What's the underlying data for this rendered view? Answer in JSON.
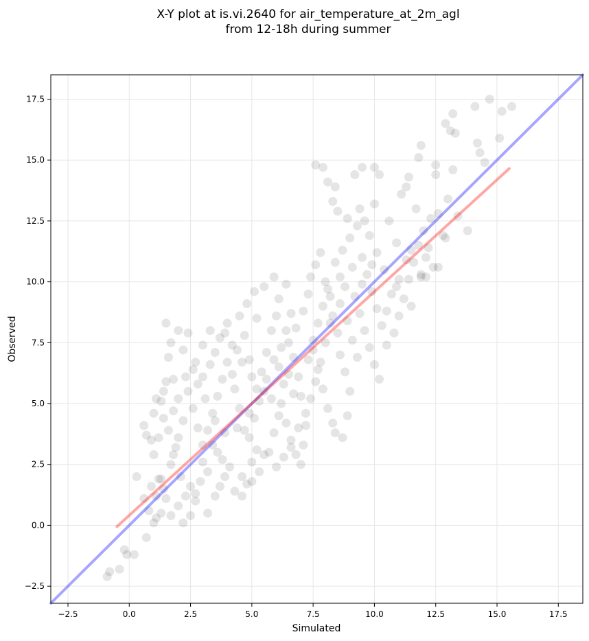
{
  "chart_data": {
    "type": "scatter",
    "title": [
      "X-Y plot at is.vi.2640 for air_temperature_at_2m_agl",
      "from 12-18h during summer"
    ],
    "xlabel": "Simulated",
    "ylabel": "Observed",
    "xlim": [
      -3.2,
      18.5
    ],
    "ylim": [
      -3.2,
      18.5
    ],
    "x_ticks": [
      -2.5,
      0.0,
      2.5,
      5.0,
      7.5,
      10.0,
      12.5,
      15.0,
      17.5
    ],
    "x_tick_labels": [
      "−2.5",
      "0.0",
      "2.5",
      "5.0",
      "7.5",
      "10.0",
      "12.5",
      "15.0",
      "17.5"
    ],
    "y_ticks": [
      -2.5,
      0.0,
      2.5,
      5.0,
      7.5,
      10.0,
      12.5,
      15.0,
      17.5
    ],
    "y_tick_labels": [
      "−2.5",
      "0.0",
      "2.5",
      "5.0",
      "7.5",
      "10.0",
      "12.5",
      "15.0",
      "17.5"
    ],
    "grid": true,
    "point_color": "#333333",
    "points": [
      [
        -0.9,
        -2.1
      ],
      [
        -0.8,
        -1.9
      ],
      [
        -0.4,
        -1.8
      ],
      [
        -0.1,
        -1.2
      ],
      [
        0.2,
        -1.2
      ],
      [
        -0.2,
        -1.0
      ],
      [
        0.7,
        -0.5
      ],
      [
        0.3,
        2.0
      ],
      [
        0.6,
        1.1
      ],
      [
        0.8,
        0.6
      ],
      [
        1.0,
        0.1
      ],
      [
        1.1,
        0.3
      ],
      [
        1.3,
        0.5
      ],
      [
        0.6,
        4.1
      ],
      [
        0.7,
        3.7
      ],
      [
        0.9,
        3.5
      ],
      [
        1.0,
        4.6
      ],
      [
        1.1,
        5.2
      ],
      [
        1.4,
        5.5
      ],
      [
        1.5,
        8.3
      ],
      [
        1.7,
        7.5
      ],
      [
        1.8,
        6.0
      ],
      [
        2.0,
        8.0
      ],
      [
        1.6,
        6.9
      ],
      [
        2.2,
        7.2
      ],
      [
        2.4,
        7.9
      ],
      [
        1.2,
        1.9
      ],
      [
        1.4,
        1.5
      ],
      [
        1.7,
        2.5
      ],
      [
        1.9,
        3.2
      ],
      [
        2.1,
        2.0
      ],
      [
        2.3,
        1.2
      ],
      [
        2.5,
        1.6
      ],
      [
        2.7,
        1.0
      ],
      [
        2.9,
        1.8
      ],
      [
        3.0,
        2.6
      ],
      [
        3.2,
        2.2
      ],
      [
        3.2,
        0.5
      ],
      [
        3.4,
        3.3
      ],
      [
        3.6,
        3.0
      ],
      [
        3.8,
        2.7
      ],
      [
        3.9,
        3.8
      ],
      [
        3.5,
        4.3
      ],
      [
        3.1,
        5.2
      ],
      [
        2.8,
        5.8
      ],
      [
        2.6,
        6.4
      ],
      [
        3.0,
        7.4
      ],
      [
        3.3,
        8.0
      ],
      [
        3.7,
        7.7
      ],
      [
        4.0,
        8.3
      ],
      [
        4.2,
        6.2
      ],
      [
        4.3,
        5.6
      ],
      [
        4.5,
        4.8
      ],
      [
        4.4,
        4.0
      ],
      [
        4.1,
        2.4
      ],
      [
        4.6,
        2.0
      ],
      [
        4.8,
        1.7
      ],
      [
        5.0,
        2.6
      ],
      [
        5.2,
        3.1
      ],
      [
        4.9,
        3.6
      ],
      [
        5.1,
        4.4
      ],
      [
        5.3,
        5.1
      ],
      [
        5.5,
        5.5
      ],
      [
        5.4,
        6.3
      ],
      [
        5.6,
        7.1
      ],
      [
        5.8,
        8.0
      ],
      [
        6.0,
        8.6
      ],
      [
        5.2,
        8.5
      ],
      [
        4.7,
        7.8
      ],
      [
        4.9,
        6.8
      ],
      [
        6.1,
        6.5
      ],
      [
        6.3,
        5.8
      ],
      [
        6.2,
        5.0
      ],
      [
        6.4,
        4.2
      ],
      [
        6.6,
        3.5
      ],
      [
        6.8,
        2.9
      ],
      [
        7.0,
        2.5
      ],
      [
        7.1,
        3.3
      ],
      [
        7.2,
        4.1
      ],
      [
        7.0,
        5.3
      ],
      [
        6.9,
        6.1
      ],
      [
        6.7,
        6.9
      ],
      [
        6.5,
        7.5
      ],
      [
        6.8,
        8.1
      ],
      [
        7.1,
        8.8
      ],
      [
        7.3,
        9.5
      ],
      [
        7.4,
        10.2
      ],
      [
        7.6,
        10.7
      ],
      [
        7.8,
        11.2
      ],
      [
        7.5,
        7.2
      ],
      [
        7.7,
        6.4
      ],
      [
        7.9,
        5.6
      ],
      [
        8.1,
        4.8
      ],
      [
        8.3,
        4.2
      ],
      [
        8.4,
        3.8
      ],
      [
        8.7,
        3.6
      ],
      [
        8.9,
        4.5
      ],
      [
        9.0,
        5.5
      ],
      [
        8.8,
        6.3
      ],
      [
        8.6,
        7.0
      ],
      [
        8.5,
        7.9
      ],
      [
        8.3,
        8.6
      ],
      [
        8.2,
        9.4
      ],
      [
        8.0,
        10.0
      ],
      [
        8.4,
        10.8
      ],
      [
        8.7,
        11.3
      ],
      [
        9.0,
        11.8
      ],
      [
        9.3,
        12.3
      ],
      [
        9.5,
        11.0
      ],
      [
        9.7,
        10.3
      ],
      [
        9.9,
        9.6
      ],
      [
        10.1,
        8.9
      ],
      [
        10.3,
        8.2
      ],
      [
        10.5,
        7.4
      ],
      [
        10.8,
        7.9
      ],
      [
        11.0,
        8.6
      ],
      [
        11.2,
        9.3
      ],
      [
        11.4,
        10.1
      ],
      [
        11.6,
        10.8
      ],
      [
        11.8,
        11.5
      ],
      [
        12.0,
        12.1
      ],
      [
        12.2,
        11.4
      ],
      [
        12.4,
        10.6
      ],
      [
        11.9,
        10.2
      ],
      [
        11.5,
        9.0
      ],
      [
        10.9,
        9.8
      ],
      [
        10.4,
        10.5
      ],
      [
        10.1,
        11.2
      ],
      [
        9.8,
        11.9
      ],
      [
        9.6,
        12.5
      ],
      [
        10.0,
        13.2
      ],
      [
        9.4,
        13.0
      ],
      [
        8.9,
        12.6
      ],
      [
        8.5,
        12.9
      ],
      [
        8.3,
        13.3
      ],
      [
        8.1,
        14.1
      ],
      [
        7.6,
        14.8
      ],
      [
        7.9,
        14.7
      ],
      [
        8.4,
        13.9
      ],
      [
        9.2,
        14.4
      ],
      [
        9.5,
        14.7
      ],
      [
        10.0,
        14.7
      ],
      [
        10.2,
        14.4
      ],
      [
        11.1,
        13.6
      ],
      [
        11.3,
        13.9
      ],
      [
        11.4,
        14.3
      ],
      [
        11.7,
        13.0
      ],
      [
        12.3,
        12.6
      ],
      [
        12.6,
        12.8
      ],
      [
        12.8,
        11.9
      ],
      [
        13.0,
        13.4
      ],
      [
        13.2,
        14.6
      ],
      [
        12.5,
        14.4
      ],
      [
        12.5,
        14.8
      ],
      [
        11.8,
        15.1
      ],
      [
        11.9,
        15.6
      ],
      [
        12.9,
        16.5
      ],
      [
        13.1,
        16.2
      ],
      [
        13.3,
        16.1
      ],
      [
        13.2,
        16.9
      ],
      [
        14.1,
        17.2
      ],
      [
        14.7,
        17.5
      ],
      [
        15.2,
        17.0
      ],
      [
        15.6,
        17.2
      ],
      [
        15.1,
        15.9
      ],
      [
        14.2,
        15.7
      ],
      [
        14.3,
        15.3
      ],
      [
        14.5,
        14.9
      ],
      [
        13.8,
        12.1
      ],
      [
        13.4,
        12.7
      ],
      [
        12.9,
        11.8
      ],
      [
        12.6,
        10.6
      ],
      [
        11.9,
        10.3
      ],
      [
        12.1,
        10.2
      ],
      [
        11.3,
        10.9
      ],
      [
        10.9,
        11.6
      ],
      [
        10.6,
        12.5
      ],
      [
        9.1,
        10.6
      ],
      [
        8.8,
        9.8
      ],
      [
        8.6,
        9.1
      ],
      [
        8.2,
        8.3
      ],
      [
        8.0,
        7.5
      ],
      [
        7.8,
        6.7
      ],
      [
        7.6,
        5.9
      ],
      [
        7.4,
        5.2
      ],
      [
        7.2,
        4.6
      ],
      [
        6.9,
        4.0
      ],
      [
        6.6,
        3.2
      ],
      [
        6.3,
        2.8
      ],
      [
        6.0,
        2.4
      ],
      [
        5.7,
        3.0
      ],
      [
        5.9,
        3.8
      ],
      [
        6.1,
        4.5
      ],
      [
        5.8,
        5.2
      ],
      [
        5.6,
        6.0
      ],
      [
        5.9,
        6.8
      ],
      [
        6.2,
        7.3
      ],
      [
        6.4,
        8.0
      ],
      [
        6.6,
        8.7
      ],
      [
        6.1,
        9.3
      ],
      [
        6.4,
        9.9
      ],
      [
        5.9,
        10.2
      ],
      [
        5.5,
        9.8
      ],
      [
        5.1,
        9.6
      ],
      [
        4.8,
        9.1
      ],
      [
        4.5,
        8.6
      ],
      [
        4.2,
        7.4
      ],
      [
        4.0,
        6.7
      ],
      [
        3.8,
        6.0
      ],
      [
        3.6,
        5.3
      ],
      [
        3.4,
        4.6
      ],
      [
        3.2,
        3.9
      ],
      [
        3.0,
        3.3
      ],
      [
        2.8,
        4.0
      ],
      [
        2.6,
        4.8
      ],
      [
        2.4,
        5.5
      ],
      [
        2.2,
        4.3
      ],
      [
        2.0,
        3.6
      ],
      [
        1.8,
        2.9
      ],
      [
        1.6,
        3.9
      ],
      [
        1.4,
        4.4
      ],
      [
        1.2,
        3.6
      ],
      [
        1.0,
        2.9
      ],
      [
        0.9,
        1.6
      ],
      [
        1.1,
        1.2
      ],
      [
        1.3,
        1.9
      ],
      [
        1.5,
        1.1
      ],
      [
        1.7,
        0.4
      ],
      [
        2.0,
        0.8
      ],
      [
        2.2,
        0.1
      ],
      [
        2.5,
        0.4
      ],
      [
        2.7,
        1.3
      ],
      [
        3.5,
        1.2
      ],
      [
        3.7,
        1.6
      ],
      [
        3.9,
        2.0
      ],
      [
        4.3,
        1.4
      ],
      [
        4.6,
        1.2
      ],
      [
        5.0,
        1.8
      ],
      [
        5.3,
        2.2
      ],
      [
        5.5,
        2.9
      ],
      [
        4.7,
        3.9
      ],
      [
        4.9,
        4.6
      ],
      [
        5.2,
        5.6
      ],
      [
        5.0,
        6.1
      ],
      [
        4.6,
        6.7
      ],
      [
        4.4,
        7.2
      ],
      [
        3.9,
        7.9
      ],
      [
        3.5,
        7.1
      ],
      [
        3.3,
        6.6
      ],
      [
        3.0,
        6.1
      ],
      [
        2.7,
        6.7
      ],
      [
        2.3,
        6.1
      ],
      [
        2.0,
        5.2
      ],
      [
        1.8,
        4.7
      ],
      [
        1.5,
        5.9
      ],
      [
        1.3,
        5.1
      ],
      [
        6.7,
        5.4
      ],
      [
        6.5,
        6.2
      ],
      [
        7.3,
        6.8
      ],
      [
        7.5,
        7.6
      ],
      [
        7.7,
        8.3
      ],
      [
        7.9,
        9.0
      ],
      [
        8.1,
        9.7
      ],
      [
        8.6,
        10.2
      ],
      [
        9.2,
        9.4
      ],
      [
        9.4,
        8.7
      ],
      [
        9.6,
        8.0
      ],
      [
        9.8,
        7.3
      ],
      [
        10.0,
        6.6
      ],
      [
        10.2,
        6.0
      ],
      [
        9.3,
        6.9
      ],
      [
        9.1,
        7.6
      ],
      [
        8.9,
        8.4
      ],
      [
        9.5,
        9.9
      ],
      [
        9.9,
        10.7
      ],
      [
        10.7,
        9.5
      ],
      [
        11.0,
        10.1
      ],
      [
        11.5,
        11.3
      ],
      [
        12.1,
        11.0
      ],
      [
        10.5,
        8.8
      ]
    ],
    "lines": [
      {
        "name": "",
        "color": "#0000ff",
        "x": [
          -3.2,
          18.5
        ],
        "y": [
          -3.2,
          18.5
        ]
      },
      {
        "name": "",
        "color": "#ff0000",
        "x": [
          -0.5,
          15.5
        ],
        "y": [
          -0.05,
          14.65
        ]
      }
    ]
  }
}
